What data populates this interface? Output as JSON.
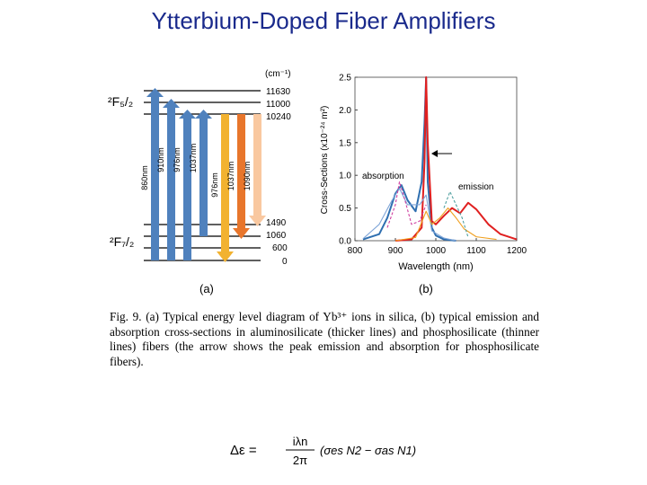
{
  "title": "Ytterbium-Doped Fiber Amplifiers",
  "figure": {
    "panel_a": {
      "label": "(a)",
      "unit_label": "(cm⁻¹)",
      "upper_manifold": "²F₅/₂",
      "lower_manifold": "²F₇/₂",
      "upper_levels": [
        "11630",
        "11000",
        "10240"
      ],
      "lower_levels": [
        "1490",
        "1060",
        "600",
        "0"
      ],
      "absorption_arrows": [
        "860nm",
        "910nm",
        "976nm",
        "1037nm"
      ],
      "emission_arrows": [
        "976nm",
        "1037nm",
        "1090nm"
      ],
      "colors": {
        "absorption": "#4f81bd",
        "emission_976": "#f2b230",
        "emission_1037": "#e8762c",
        "emission_1090": "#f9c8a0"
      }
    },
    "panel_b": {
      "label": "(b)",
      "chart_data": {
        "type": "line",
        "xlabel": "Wavelength (nm)",
        "ylabel": "Cross-Sections (x10⁻²⁴ m²)",
        "xlim": [
          800,
          1200
        ],
        "ylim": [
          0,
          2.5
        ],
        "x_ticks": [
          "800",
          "900",
          "1000",
          "1100",
          "1200"
        ],
        "y_ticks": [
          "0.0",
          "0.5",
          "1.0",
          "1.5",
          "2.0",
          "2.5"
        ],
        "annotations": [
          "absorption",
          "emission"
        ],
        "series": [
          {
            "color": "#2f6fb0",
            "x": [
              820,
              860,
              880,
              900,
              915,
              930,
              950,
              965,
              972,
              976,
              980,
              990,
              1000,
              1020,
              1050
            ],
            "y": [
              0.02,
              0.1,
              0.35,
              0.72,
              0.85,
              0.62,
              0.45,
              0.9,
              1.8,
              2.5,
              0.9,
              0.2,
              0.08,
              0.02,
              0.0
            ]
          },
          {
            "color": "#e02020",
            "x": [
              900,
              940,
              965,
              972,
              976,
              980,
              990,
              1000,
              1020,
              1040,
              1060,
              1080,
              1100,
              1130,
              1160,
              1200
            ],
            "y": [
              0.0,
              0.02,
              0.2,
              1.2,
              2.5,
              1.5,
              0.3,
              0.25,
              0.38,
              0.5,
              0.42,
              0.58,
              0.48,
              0.25,
              0.1,
              0.02
            ]
          },
          {
            "color": "#7fa5d8",
            "x": [
              820,
              860,
              890,
              910,
              930,
              960,
              976,
              990,
              1020,
              1050
            ],
            "y": [
              0.03,
              0.25,
              0.6,
              0.8,
              0.55,
              0.55,
              0.7,
              0.15,
              0.04,
              0.0
            ]
          },
          {
            "color": "#f0a020",
            "x": [
              900,
              950,
              976,
              990,
              1010,
              1030,
              1050,
              1070,
              1100,
              1150
            ],
            "y": [
              0.0,
              0.05,
              0.45,
              0.25,
              0.35,
              0.5,
              0.35,
              0.18,
              0.06,
              0.02
            ]
          },
          {
            "color": "#d040a0",
            "x": [
              880,
              900,
              910,
              920,
              940,
              960,
              976
            ],
            "y": [
              0.2,
              0.55,
              0.9,
              0.7,
              0.25,
              0.3,
              0.55
            ]
          },
          {
            "color": "#50a0a0",
            "x": [
              1020,
              1035,
              1050,
              1065,
              1080
            ],
            "y": [
              0.5,
              0.75,
              0.55,
              0.35,
              0.05
            ]
          }
        ]
      }
    }
  },
  "caption": "Fig. 9. (a) Typical energy level diagram of Yb³⁺ ions in silica, (b) typical emission and absorption cross-sections in aluminosilicate (thicker lines) and phosphosilicate (thinner lines) fibers (the arrow shows the peak emission and absorption for phosphosilicate fibers).",
  "equation": {
    "lhs": "Δε =",
    "numerator": "iλn",
    "denominator": "2π",
    "rhs": "(σes N2 − σas N1)"
  }
}
